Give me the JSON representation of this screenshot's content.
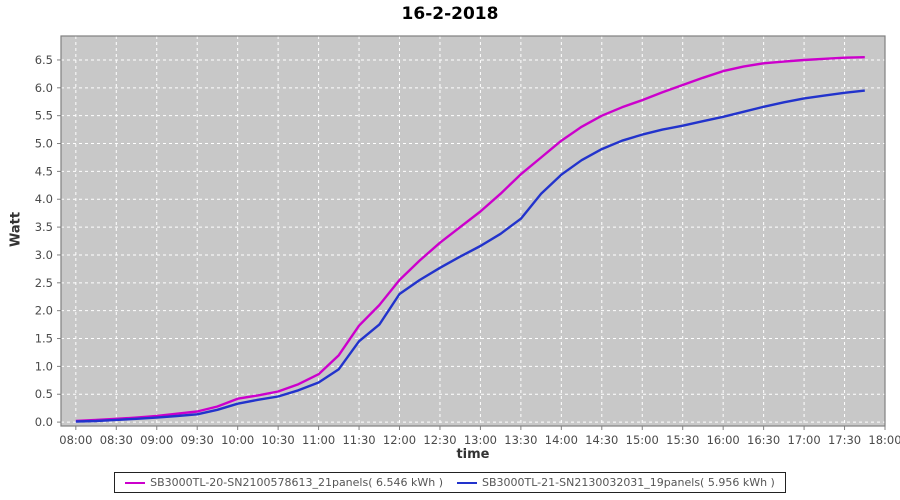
{
  "chart_data": {
    "type": "line",
    "title": "16-2-2018",
    "xlabel": "time",
    "ylabel": "Watt",
    "legend_position": "bottom",
    "grid": true,
    "plot_bg_color": "#c8c8c8",
    "gridline_color": "#ffffff",
    "axis_color": "#808080",
    "x_tick_labels": [
      "08:00",
      "08:30",
      "09:00",
      "09:30",
      "10:00",
      "10:30",
      "11:00",
      "11:30",
      "12:00",
      "12:30",
      "13:00",
      "13:30",
      "14:00",
      "14:30",
      "15:00",
      "15:30",
      "16:00",
      "16:30",
      "17:00",
      "17:30",
      "18:00"
    ],
    "x_tick_minutes": [
      480,
      510,
      540,
      570,
      600,
      630,
      660,
      690,
      720,
      750,
      780,
      810,
      840,
      870,
      900,
      930,
      960,
      990,
      1020,
      1050,
      1080
    ],
    "y_ticks": [
      0.0,
      0.5,
      1.0,
      1.5,
      2.0,
      2.5,
      3.0,
      3.5,
      4.0,
      4.5,
      5.0,
      5.5,
      6.0,
      6.5
    ],
    "y_tick_labels": [
      "0.0",
      "0.5",
      "1.0",
      "1.5",
      "2.0",
      "2.5",
      "3.0",
      "3.5",
      "4.0",
      "4.5",
      "5.0",
      "5.5",
      "6.0",
      "6.5"
    ],
    "x_domain_minutes": [
      469,
      1080
    ],
    "ylim": [
      -0.07,
      6.93
    ],
    "x_minutes": [
      480,
      495,
      510,
      525,
      540,
      555,
      570,
      585,
      600,
      615,
      630,
      645,
      660,
      675,
      690,
      705,
      720,
      735,
      750,
      765,
      780,
      795,
      810,
      825,
      840,
      855,
      870,
      885,
      900,
      915,
      930,
      945,
      960,
      975,
      990,
      1005,
      1020,
      1035,
      1050,
      1065
    ],
    "series": [
      {
        "name": "SB3000TL-20-SN2100578613_21panels( 6.546 kWh )",
        "color": "#cc00cc",
        "final_kwh": "6.546",
        "values": [
          0.02,
          0.04,
          0.06,
          0.08,
          0.11,
          0.15,
          0.19,
          0.28,
          0.42,
          0.48,
          0.55,
          0.68,
          0.86,
          1.2,
          1.73,
          2.1,
          2.55,
          2.9,
          3.22,
          3.5,
          3.78,
          4.1,
          4.45,
          4.75,
          5.05,
          5.3,
          5.5,
          5.65,
          5.78,
          5.92,
          6.05,
          6.18,
          6.3,
          6.38,
          6.44,
          6.47,
          6.5,
          6.52,
          6.54,
          6.55
        ]
      },
      {
        "name": "SB3000TL-21-SN2130032031_19panels( 5.956 kWh )",
        "color": "#2233cc",
        "final_kwh": "5.956",
        "values": [
          0.01,
          0.02,
          0.04,
          0.06,
          0.08,
          0.11,
          0.14,
          0.22,
          0.33,
          0.4,
          0.46,
          0.57,
          0.71,
          0.95,
          1.45,
          1.75,
          2.3,
          2.55,
          2.77,
          2.97,
          3.16,
          3.38,
          3.65,
          4.1,
          4.44,
          4.7,
          4.9,
          5.05,
          5.16,
          5.25,
          5.32,
          5.4,
          5.48,
          5.57,
          5.66,
          5.74,
          5.81,
          5.86,
          5.91,
          5.95
        ]
      }
    ]
  }
}
